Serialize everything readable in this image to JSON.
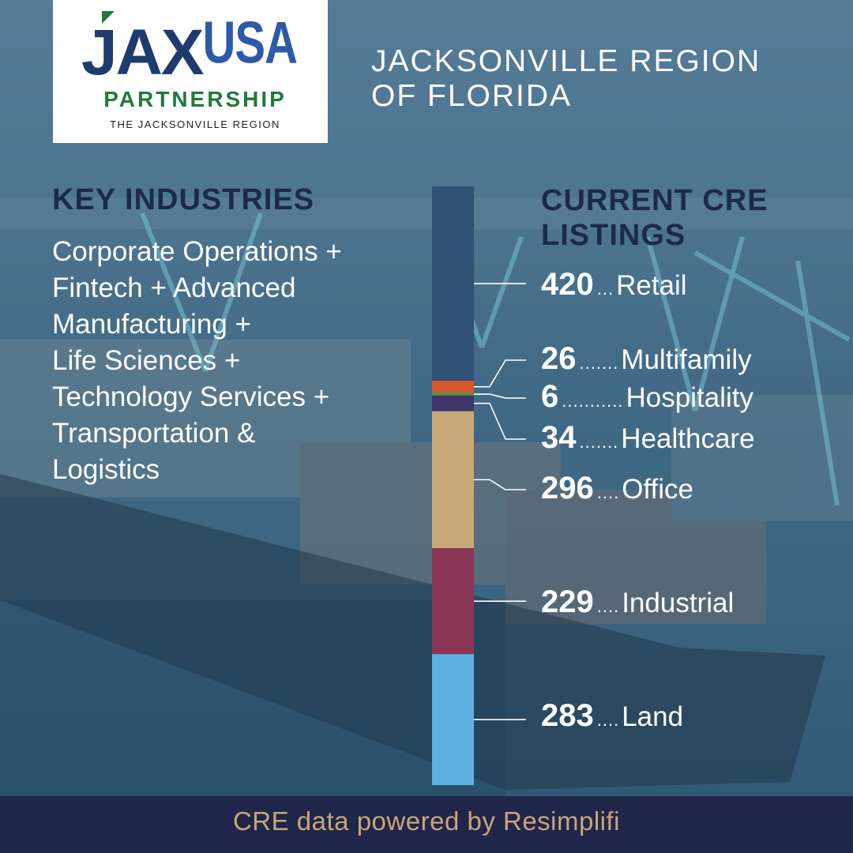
{
  "logo": {
    "jax": "JAX",
    "usa": "USA",
    "partnership": "PARTNERSHIP",
    "tagline": "THE JACKSONVILLE REGION"
  },
  "region_title": [
    "JACKSONVILLE REGION",
    "OF FLORIDA"
  ],
  "key_industries": {
    "heading": "KEY INDUSTRIES",
    "lines": [
      "Corporate Operations +",
      "Fintech + Advanced",
      "Manufacturing +",
      "Life Sciences +",
      "Technology Services +",
      "Transportation &",
      "Logistics"
    ]
  },
  "cre_heading": [
    "CURRENT CRE",
    "LISTINGS"
  ],
  "colors": {
    "Retail": "#2f5173",
    "Multifamily": "#d5582e",
    "Hospitality": "#4f9a3a",
    "Healthcare": "#3e356a",
    "Office": "#c9a878",
    "Industrial": "#8a3555",
    "Land": "#5fb1e3",
    "footer_bg": "#20254a",
    "footer_text": "#c9a678",
    "heading_navy": "#1c2a4a"
  },
  "chart_data": {
    "type": "bar",
    "orientation": "stacked-vertical",
    "categories": [
      "Retail",
      "Multifamily",
      "Hospitality",
      "Healthcare",
      "Office",
      "Industrial",
      "Land"
    ],
    "values": [
      420,
      26,
      6,
      34,
      296,
      229,
      283
    ],
    "dots": [
      "...",
      ".......",
      "...........",
      ".......",
      "....",
      "....",
      "...."
    ]
  },
  "footer": "CRE data powered by Resimplifi"
}
